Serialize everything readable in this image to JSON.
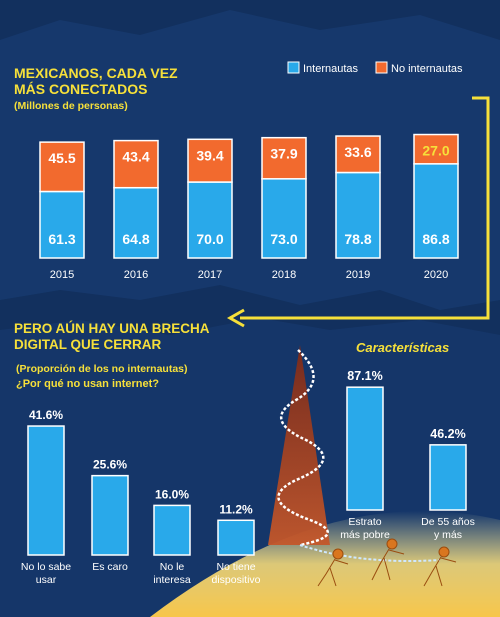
{
  "colors": {
    "internautas": "#29a9ea",
    "no_internautas": "#f26a2e",
    "highlight_value": "#f6e03a",
    "title": "#f6e03a",
    "background": "#12305e",
    "bar_outline": "#ffffff"
  },
  "chart_data": [
    {
      "type": "bar",
      "stacked": true,
      "title": "MEXICANOS, CADA VEZ MÁS CONECTADOS",
      "subtitle": "(Millones de personas)",
      "legend_position": "top-right",
      "categories": [
        "2015",
        "2016",
        "2017",
        "2018",
        "2019",
        "2020"
      ],
      "series": [
        {
          "name": "Internautas",
          "values": [
            61.3,
            64.8,
            70.0,
            73.0,
            78.8,
            86.8
          ],
          "labels": [
            "61.3",
            "64.8",
            "70.0",
            "73.0",
            "78.8",
            "86.8"
          ]
        },
        {
          "name": "No internautas",
          "values": [
            45.5,
            43.4,
            39.4,
            37.9,
            33.6,
            27.0
          ],
          "labels": [
            "45.5",
            "43.4",
            "39.4",
            "37.9",
            "33.6",
            "27.0"
          ]
        }
      ]
    },
    {
      "type": "bar",
      "title": "PERO AÚN HAY UNA BRECHA DIGITAL QUE CERRAR",
      "subtitle": "(Proporción de los no internautas)",
      "question": "¿Por qué no usan internet?",
      "categories": [
        [
          "No lo sabe",
          "usar"
        ],
        [
          "Es caro"
        ],
        [
          "No le",
          "interesa"
        ],
        [
          "No tiene",
          "dispositivo"
        ]
      ],
      "values": [
        41.6,
        25.6,
        16.0,
        11.2
      ],
      "labels": [
        "41.6%",
        "25.6%",
        "16.0%",
        "11.2%"
      ]
    },
    {
      "type": "bar",
      "title": "Características",
      "categories": [
        [
          "Estrato",
          "más pobre"
        ],
        [
          "De 55 años",
          "y más"
        ]
      ],
      "values": [
        87.1,
        46.2
      ],
      "labels": [
        "87.1%",
        "46.2%"
      ]
    }
  ]
}
